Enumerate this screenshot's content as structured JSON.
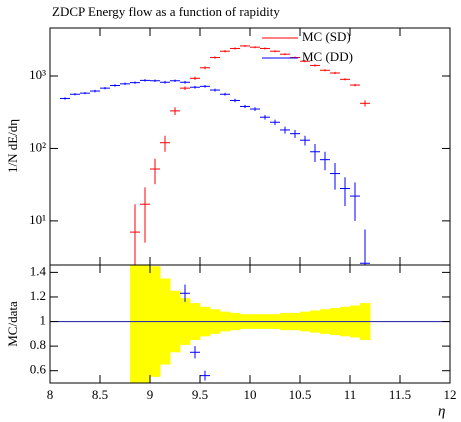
{
  "chart_data": [
    {
      "type": "line",
      "title": "ZDCP Energy flow as a function of rapidity",
      "ylabel": "1/N dE/dη",
      "log_y": true,
      "xlim": [
        8,
        12
      ],
      "ylim": [
        2.46,
        4600
      ],
      "yticks": [
        {
          "value": 10,
          "label": "10¹"
        },
        {
          "value": 100,
          "label": "10²"
        },
        {
          "value": 1000,
          "label": "10³"
        }
      ],
      "legend": "upper right",
      "bin_halfwidth": 0.05,
      "series": [
        {
          "name": "MC (SD)",
          "color": "#ff0000",
          "x": [
            8.85,
            8.95,
            9.05,
            9.15,
            9.25,
            9.35,
            9.45,
            9.55,
            9.65,
            9.75,
            9.85,
            9.95,
            10.05,
            10.15,
            10.25,
            10.35,
            10.45,
            10.55,
            10.65,
            10.75,
            10.85,
            10.95,
            11.05,
            11.15
          ],
          "values": [
            7,
            17,
            52,
            120,
            330,
            680,
            930,
            1300,
            1800,
            2200,
            2400,
            2600,
            2500,
            2400,
            2200,
            2000,
            1800,
            1600,
            1400,
            1200,
            1100,
            900,
            750,
            420
          ],
          "errors": [
            10,
            12,
            20,
            30,
            40,
            40,
            50,
            60,
            70,
            80,
            80,
            80,
            80,
            80,
            70,
            60,
            60,
            50,
            50,
            40,
            40,
            30,
            30,
            40
          ]
        },
        {
          "name": "MC (DD)",
          "color": "#0000ff",
          "x": [
            8.15,
            8.25,
            8.35,
            8.45,
            8.55,
            8.65,
            8.75,
            8.85,
            8.95,
            9.05,
            9.15,
            9.25,
            9.35,
            9.45,
            9.55,
            9.65,
            9.75,
            9.85,
            9.95,
            10.05,
            10.15,
            10.25,
            10.35,
            10.45,
            10.55,
            10.65,
            10.75,
            10.85,
            10.95,
            11.05,
            11.15
          ],
          "values": [
            490,
            560,
            580,
            620,
            680,
            740,
            780,
            810,
            870,
            860,
            820,
            860,
            820,
            700,
            720,
            640,
            560,
            460,
            380,
            350,
            270,
            230,
            180,
            160,
            130,
            90,
            70,
            45,
            28,
            22,
            2.6
          ],
          "errors": [
            20,
            20,
            20,
            25,
            25,
            30,
            30,
            30,
            35,
            35,
            35,
            35,
            35,
            30,
            30,
            30,
            25,
            25,
            20,
            20,
            20,
            20,
            20,
            20,
            20,
            25,
            20,
            18,
            12,
            12,
            5
          ]
        }
      ]
    },
    {
      "type": "ratio",
      "ylabel": "MC/data",
      "xlabel": "η",
      "xlim": [
        8,
        12
      ],
      "ylim": [
        0.5,
        1.46
      ],
      "xticks": [
        8,
        8.5,
        9,
        9.5,
        10,
        10.5,
        11,
        11.5,
        12
      ],
      "yticks": [
        0.6,
        0.8,
        1,
        1.2,
        1.4
      ],
      "reference": 1,
      "bin_halfwidth": 0.05,
      "band": {
        "color": "#ffff00",
        "x": [
          8.85,
          8.95,
          9.05,
          9.15,
          9.25,
          9.35,
          9.45,
          9.55,
          9.65,
          9.75,
          9.85,
          9.95,
          10.05,
          10.15,
          10.25,
          10.35,
          10.45,
          10.55,
          10.65,
          10.75,
          10.85,
          10.95,
          11.05,
          11.15
        ],
        "errors": [
          0.6,
          0.55,
          0.45,
          0.35,
          0.25,
          0.19,
          0.15,
          0.12,
          0.1,
          0.08,
          0.07,
          0.06,
          0.06,
          0.06,
          0.06,
          0.07,
          0.07,
          0.08,
          0.09,
          0.1,
          0.11,
          0.12,
          0.13,
          0.15
        ]
      },
      "series": [
        {
          "name": "MC (DD)",
          "color": "#0000ff",
          "x": [
            9.35,
            9.45,
            9.55
          ],
          "values": [
            1.23,
            0.75,
            0.56
          ],
          "errors": [
            0.07,
            0.05,
            0.04
          ]
        }
      ]
    }
  ]
}
